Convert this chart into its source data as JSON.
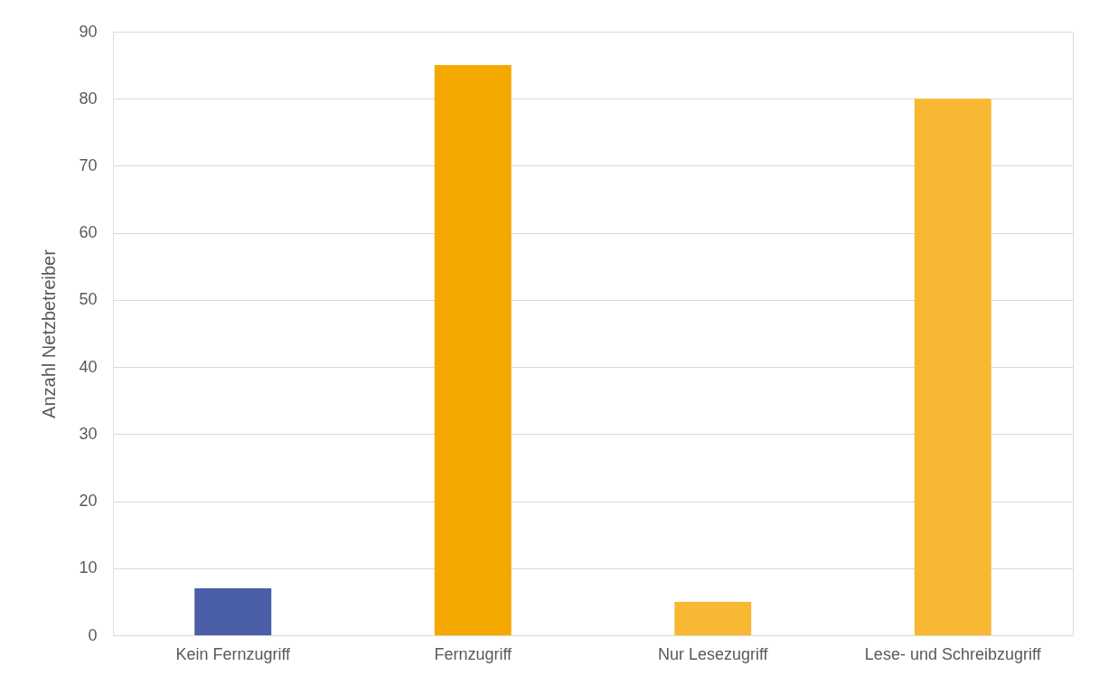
{
  "chart_data": {
    "type": "bar",
    "ylabel": "Anzahl Netzbetreiber",
    "categories": [
      "Kein Fernzugriff",
      "Fernzugriff",
      "Nur Lesezugriff",
      "Lese- und Schreibzugriff"
    ],
    "values": [
      7,
      85,
      5,
      80
    ],
    "colors": [
      "#4a5fa8",
      "#f5a800",
      "#f8b833",
      "#f8b833"
    ],
    "ylim": [
      0,
      90
    ],
    "yticks": [
      0,
      10,
      20,
      30,
      40,
      50,
      60,
      70,
      80,
      90
    ],
    "grid": "y"
  }
}
